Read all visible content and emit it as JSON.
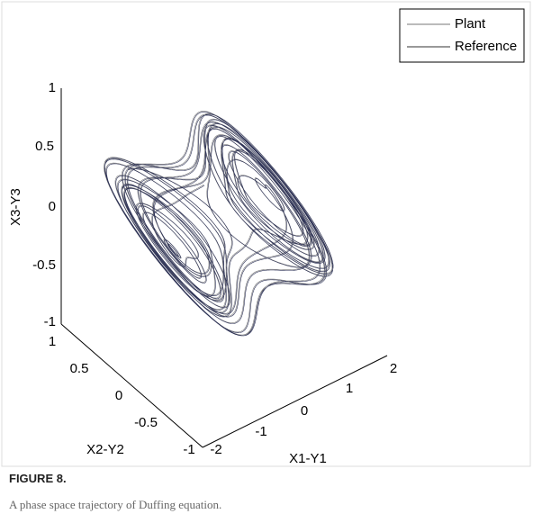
{
  "figure": {
    "legend": [
      "Plant",
      "Reference"
    ],
    "axes": {
      "x3": {
        "label": "X3-Y3",
        "ticks": [
          "1",
          "0.5",
          "0",
          "-0.5",
          "-1"
        ]
      },
      "x2": {
        "label": "X2-Y2",
        "ticks": [
          "1",
          "0.5",
          "0",
          "-0.5",
          "-1"
        ]
      },
      "x1": {
        "label": "X1-Y1",
        "ticks": [
          "-2",
          "-1",
          "0",
          "1",
          "2"
        ]
      }
    }
  },
  "caption": {
    "label": "FIGURE 8.",
    "text": "A phase space trajectory of Duffing equation."
  }
}
